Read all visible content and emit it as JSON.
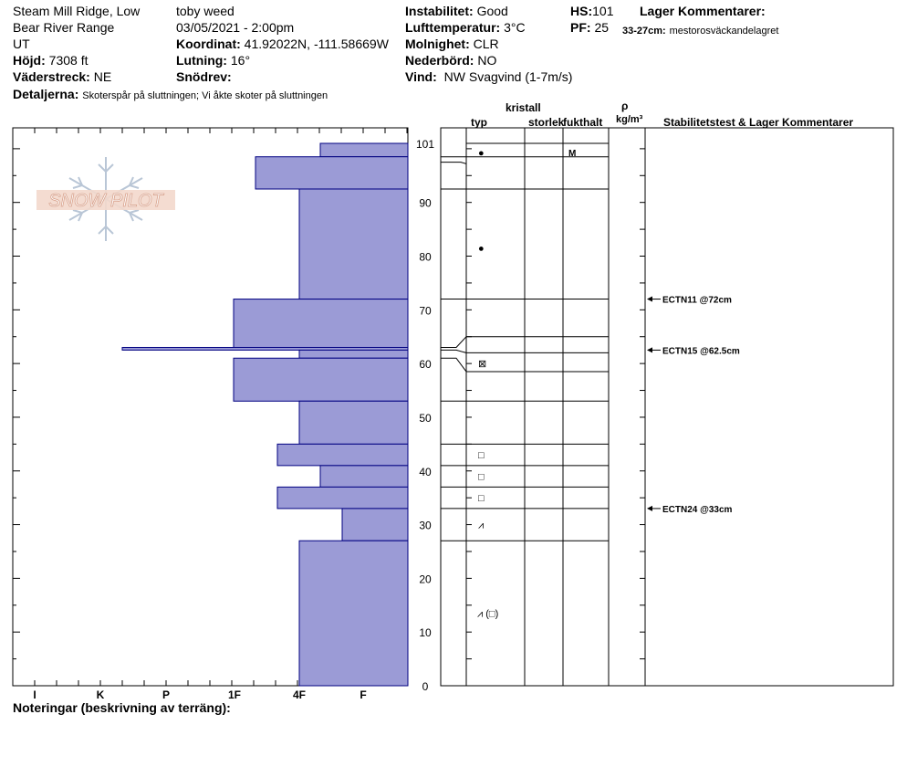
{
  "header": {
    "location": "Steam Mill Ridge, Low",
    "range": "Bear River Range",
    "state": "UT",
    "elevation_label": "Höjd:",
    "elevation": "7308 ft",
    "aspect_label": "Väderstreck:",
    "aspect": "NE",
    "details_label": "Detaljerna:",
    "details": "Skoterspår på sluttningen; Vi åkte skoter på sluttningen",
    "observer": "toby weed",
    "datetime": "03/05/2021 - 2:00pm",
    "coord_label": "Koordinat:",
    "coord": "41.92022N, -111.58669W",
    "slope_label": "Lutning:",
    "slope": "16°",
    "drift_label": "Snödrev:",
    "drift": "",
    "stability_label": "Instabilitet:",
    "stability": "Good",
    "airtemp_label": "Lufttemperatur:",
    "airtemp": "3°C",
    "sky_label": "Molnighet:",
    "sky": "CLR",
    "precip_label": "Nederbörd:",
    "precip": "NO",
    "wind_label": "Vind:",
    "wind": "NW Svagvind (1-7m/s)",
    "hs_label": "HS:",
    "hs": "101",
    "pf_label": "PF:",
    "pf": "25",
    "layer_comments_label": "Lager Kommentarer:",
    "layer_comment_range": "33-27cm:",
    "layer_comment_text": "mestorosväckandelagret"
  },
  "columns": {
    "kristall": "kristall",
    "typ": "typ",
    "storlek": "storlek",
    "fukthalt": "fukthalt",
    "rho": "ρ",
    "density_unit": "kg/m³",
    "stability": "Stabilitetstest & Lager Kommentarer"
  },
  "notes_label": "Noteringar (beskrivning av terräng):",
  "logo_text": "SNOW PILOT",
  "chart_data": {
    "type": "bar",
    "y_axis": {
      "range": [
        0,
        101
      ],
      "ticks": [
        0,
        10,
        20,
        30,
        40,
        50,
        60,
        70,
        80,
        90,
        101
      ],
      "unit": "cm"
    },
    "x_axis": {
      "categories": [
        "I",
        "K",
        "P",
        "1F",
        "4F",
        "F"
      ],
      "direction": "hardness increasing to the left"
    },
    "colors": {
      "bar_fill": "#9b9bd6",
      "bar_stroke": "#000080"
    },
    "hardness_profile": [
      {
        "top": 101,
        "bottom": 98.5,
        "hardness": "4F-"
      },
      {
        "top": 98.5,
        "bottom": 92.5,
        "hardness": "1F+"
      },
      {
        "top": 92.5,
        "bottom": 72,
        "hardness": "4F"
      },
      {
        "top": 72,
        "bottom": 63,
        "hardness": "1F"
      },
      {
        "top": 63,
        "bottom": 62.5,
        "hardness": "K+"
      },
      {
        "top": 62.5,
        "bottom": 61,
        "hardness": "4F"
      },
      {
        "top": 61,
        "bottom": 53,
        "hardness": "1F"
      },
      {
        "top": 53,
        "bottom": 45,
        "hardness": "4F"
      },
      {
        "top": 45,
        "bottom": 41,
        "hardness": "4F+"
      },
      {
        "top": 41,
        "bottom": 37,
        "hardness": "4F-"
      },
      {
        "top": 37,
        "bottom": 33,
        "hardness": "4F+"
      },
      {
        "top": 33,
        "bottom": 27,
        "hardness": "F+"
      },
      {
        "top": 27,
        "bottom": 0,
        "hardness": "4F"
      }
    ],
    "layers": [
      {
        "top": 101,
        "bottom": 98.5,
        "type": "●",
        "moisture": "M"
      },
      {
        "top": 98.5,
        "bottom": 92.5,
        "type": "",
        "moisture": ""
      },
      {
        "top": 92.5,
        "bottom": 72,
        "type": "●",
        "moisture": ""
      },
      {
        "top": 72,
        "bottom": 65,
        "type": "",
        "moisture": ""
      },
      {
        "top": 65,
        "bottom": 62,
        "type": "",
        "moisture": ""
      },
      {
        "top": 62,
        "bottom": 58.5,
        "type": "⊠",
        "moisture": ""
      },
      {
        "top": 58.5,
        "bottom": 53,
        "type": "",
        "moisture": ""
      },
      {
        "top": 53,
        "bottom": 45,
        "type": "",
        "moisture": ""
      },
      {
        "top": 45,
        "bottom": 41,
        "type": "□",
        "moisture": ""
      },
      {
        "top": 41,
        "bottom": 37,
        "type": "□",
        "moisture": ""
      },
      {
        "top": 37,
        "bottom": 33,
        "type": "□",
        "moisture": ""
      },
      {
        "top": 33,
        "bottom": 27,
        "type": "⩘",
        "moisture": ""
      },
      {
        "top": 27,
        "bottom": 0,
        "type": "⩘ (□)",
        "moisture": ""
      }
    ],
    "tests": [
      {
        "depth": 72,
        "label": "ECTN11 @72cm"
      },
      {
        "depth": 62.5,
        "label": "ECTN15 @62.5cm"
      },
      {
        "depth": 33,
        "label": "ECTN24 @33cm"
      }
    ]
  }
}
